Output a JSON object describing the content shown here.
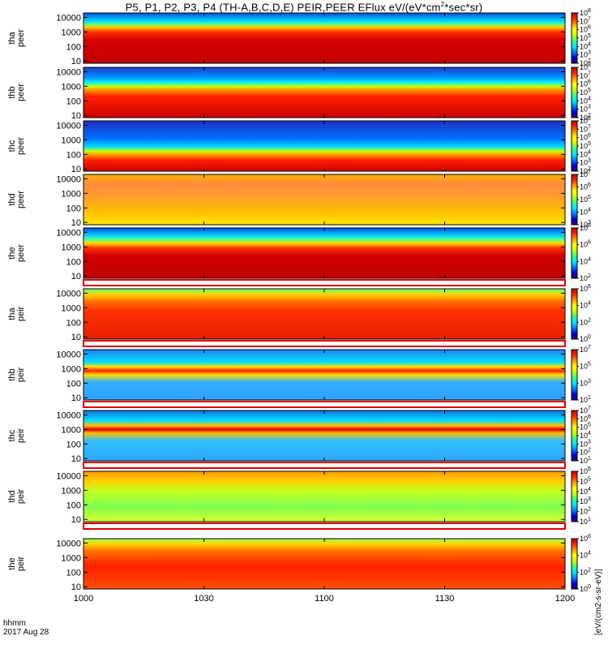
{
  "title": {
    "prefix": "P5, P1, P2, P3, P4 (TH-A,B,C,D,E) PEIR,PEER EFlux eV/(eV*cm",
    "sup": "2",
    "suffix": "*sec*sr)"
  },
  "colorbar_caption": "[eV/(cm2-s-sr-eV)]",
  "time_label": {
    "line1": "hhmm",
    "line2": "2017 Aug 28"
  },
  "chart_data": {
    "type": "heatmap",
    "xlim_minutes_after_1000": [
      0,
      120
    ],
    "x_ticks": [
      {
        "t": 0,
        "label": "1000"
      },
      {
        "t": 30,
        "label": "1030"
      },
      {
        "t": 60,
        "label": "1100"
      },
      {
        "t": 90,
        "label": "1130"
      },
      {
        "t": 120,
        "label": "1200"
      }
    ],
    "y_scale": "log",
    "ylim_eV": [
      7,
      20000
    ],
    "y_ticks": [
      {
        "value": 10,
        "label": "10"
      },
      {
        "value": 100,
        "label": "100"
      },
      {
        "value": 1000,
        "label": "1000"
      },
      {
        "value": 10000,
        "label": "10000"
      }
    ],
    "colorscale": [
      "#2a0070",
      "#0000d8",
      "#0080ff",
      "#00e8ff",
      "#30ff80",
      "#c8ff00",
      "#ffff00",
      "#ff9a00",
      "#ff2800",
      "#c00000"
    ],
    "panels": [
      {
        "label1": "tha",
        "label2": "peer",
        "cbar_ticks": [
          {
            "base": "10",
            "exp": "2"
          },
          {
            "base": "10",
            "exp": "3"
          },
          {
            "base": "10",
            "exp": "4"
          },
          {
            "base": "10",
            "exp": "5"
          },
          {
            "base": "10",
            "exp": "6"
          },
          {
            "base": "10",
            "exp": "7"
          },
          {
            "base": "10",
            "exp": "8"
          }
        ],
        "cb_min": 2,
        "cb_max": 8,
        "sep_after": false
      },
      {
        "label1": "thb",
        "label2": "peer",
        "cbar_ticks": [
          {
            "base": "10",
            "exp": "2"
          },
          {
            "base": "10",
            "exp": "3"
          },
          {
            "base": "10",
            "exp": "4"
          },
          {
            "base": "10",
            "exp": "5"
          },
          {
            "base": "10",
            "exp": "6"
          },
          {
            "base": "10",
            "exp": "7"
          },
          {
            "base": "10",
            "exp": "8"
          }
        ],
        "cb_min": 2,
        "cb_max": 8,
        "sep_after": false
      },
      {
        "label1": "thc",
        "label2": "peer",
        "cbar_ticks": [
          {
            "base": "10",
            "exp": "2"
          },
          {
            "base": "10",
            "exp": "3"
          },
          {
            "base": "10",
            "exp": "4"
          },
          {
            "base": "10",
            "exp": "5"
          },
          {
            "base": "10",
            "exp": "6"
          },
          {
            "base": "10",
            "exp": "7"
          },
          {
            "base": "10",
            "exp": "8"
          }
        ],
        "cb_min": 2,
        "cb_max": 8,
        "sep_after": false
      },
      {
        "label1": "thd",
        "label2": "peer",
        "cbar_ticks": [
          {
            "base": "10",
            "exp": "3"
          },
          {
            "base": "10",
            "exp": "4"
          },
          {
            "base": "10",
            "exp": "5"
          },
          {
            "base": "10",
            "exp": "6"
          },
          {
            "base": "10",
            "exp": "7"
          }
        ],
        "cb_min": 3,
        "cb_max": 7,
        "sep_after": false
      },
      {
        "label1": "the",
        "label2": "peer",
        "cbar_ticks": [
          {
            "base": "10",
            "exp": "2"
          },
          {
            "base": "10",
            "exp": "4"
          },
          {
            "base": "10",
            "exp": "6"
          },
          {
            "base": "10",
            "exp": "8"
          }
        ],
        "cb_min": 2,
        "cb_max": 8,
        "sep_after": true
      },
      {
        "label1": "tha",
        "label2": "peir",
        "cbar_ticks": [
          {
            "base": "10",
            "exp": "0"
          },
          {
            "base": "10",
            "exp": "2"
          },
          {
            "base": "10",
            "exp": "4"
          },
          {
            "base": "10",
            "exp": "6"
          }
        ],
        "cb_min": 0,
        "cb_max": 6,
        "sep_after": true
      },
      {
        "label1": "thb",
        "label2": "peir",
        "cbar_ticks": [
          {
            "base": "10",
            "exp": "1"
          },
          {
            "base": "10",
            "exp": "3"
          },
          {
            "base": "10",
            "exp": "5"
          },
          {
            "base": "10",
            "exp": "7"
          }
        ],
        "cb_min": 1,
        "cb_max": 7,
        "sep_after": true
      },
      {
        "label1": "thc",
        "label2": "peir",
        "cbar_ticks": [
          {
            "base": "10",
            "exp": "1"
          },
          {
            "base": "10",
            "exp": "2"
          },
          {
            "base": "10",
            "exp": "3"
          },
          {
            "base": "10",
            "exp": "4"
          },
          {
            "base": "10",
            "exp": "5"
          },
          {
            "base": "10",
            "exp": "6"
          },
          {
            "base": "10",
            "exp": "7"
          }
        ],
        "cb_min": 1,
        "cb_max": 7,
        "sep_after": true
      },
      {
        "label1": "thd",
        "label2": "peir",
        "cbar_ticks": [
          {
            "base": "10",
            "exp": "1"
          },
          {
            "base": "10",
            "exp": "2"
          },
          {
            "base": "10",
            "exp": "3"
          },
          {
            "base": "10",
            "exp": "4"
          },
          {
            "base": "10",
            "exp": "5"
          },
          {
            "base": "10",
            "exp": "6"
          }
        ],
        "cb_min": 1,
        "cb_max": 6,
        "sep_after": true
      },
      {
        "label1": "the",
        "label2": "peir",
        "cbar_ticks": [
          {
            "base": "10",
            "exp": "0"
          },
          {
            "base": "10",
            "exp": "2"
          },
          {
            "base": "10",
            "exp": "4"
          },
          {
            "base": "10",
            "exp": "6"
          }
        ],
        "cb_min": 0,
        "cb_max": 6,
        "sep_after": false
      }
    ]
  }
}
